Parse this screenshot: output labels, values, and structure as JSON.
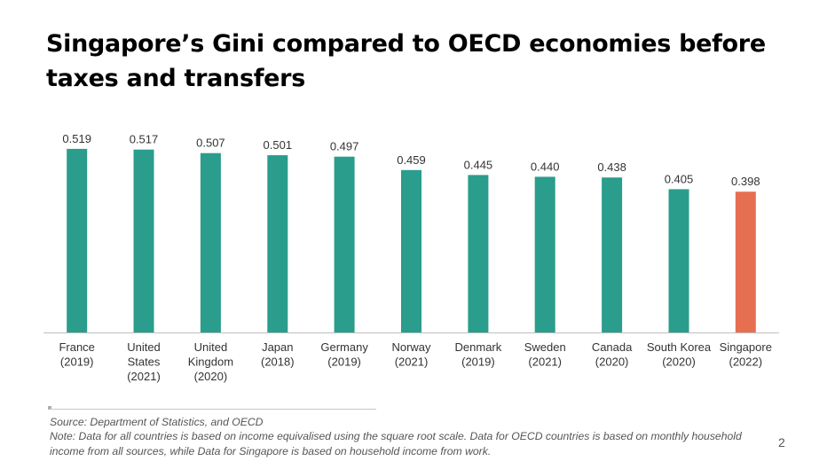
{
  "title": "Singapore’s Gini compared to OECD economies before taxes and transfers",
  "chart_data": {
    "type": "bar",
    "title": "",
    "xlabel": "",
    "ylabel": "",
    "ylim": [
      0,
      0.52
    ],
    "grid": false,
    "categories": [
      [
        "France",
        "(2019)"
      ],
      [
        "United",
        "States",
        "(2021)"
      ],
      [
        "United",
        "Kingdom",
        "(2020)"
      ],
      [
        "Japan",
        "(2018)"
      ],
      [
        "Germany",
        "(2019)"
      ],
      [
        "Norway",
        "(2021)"
      ],
      [
        "Denmark",
        "(2019)"
      ],
      [
        "Sweden",
        "(2021)"
      ],
      [
        "Canada",
        "(2020)"
      ],
      [
        "South Korea",
        "(2020)"
      ],
      [
        "Singapore",
        "(2022)"
      ]
    ],
    "values": [
      0.519,
      0.517,
      0.507,
      0.501,
      0.497,
      0.459,
      0.445,
      0.44,
      0.438,
      0.405,
      0.398
    ],
    "data_labels": [
      "0.519",
      "0.517",
      "0.507",
      "0.501",
      "0.497",
      "0.459",
      "0.445",
      "0.440",
      "0.438",
      "0.405",
      "0.398"
    ],
    "colors": {
      "oecd": "#2a9d8c",
      "highlight": "#e76f51",
      "axis": "#bfbfbf",
      "label": "#333333"
    },
    "highlight_index": 10
  },
  "footer": {
    "source": "Source: Department of Statistics, and OECD",
    "note": "Note: Data for all countries is based on income equivalised using the square root scale. Data for OECD countries is based on monthly household income from all sources, while Data for Singapore is based on household income from work.",
    "page_number": "2"
  }
}
